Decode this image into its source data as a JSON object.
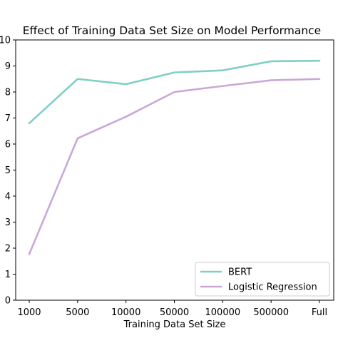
{
  "chart_data": {
    "type": "line",
    "title": "Effect of Training Data Set Size on Model Performance",
    "xlabel": "Training Data Set Size",
    "ylabel": "",
    "categories": [
      "1000",
      "5000",
      "10000",
      "50000",
      "100000",
      "500000",
      "Full"
    ],
    "ylim": [
      0,
      10
    ],
    "yticks": [
      "0",
      "1",
      "2",
      "3",
      "4",
      "5",
      "6",
      "7",
      "8",
      "9",
      "10"
    ],
    "grid": false,
    "legend_position": "bottom-right",
    "series": [
      {
        "name": "BERT",
        "color": "#80cfc8",
        "values": [
          6.8,
          8.5,
          8.3,
          8.75,
          8.83,
          9.18,
          9.2
        ]
      },
      {
        "name": "Logistic Regression",
        "color": "#c9a8d8",
        "values": [
          1.77,
          6.22,
          7.05,
          8.0,
          8.23,
          8.45,
          8.5
        ]
      }
    ]
  }
}
